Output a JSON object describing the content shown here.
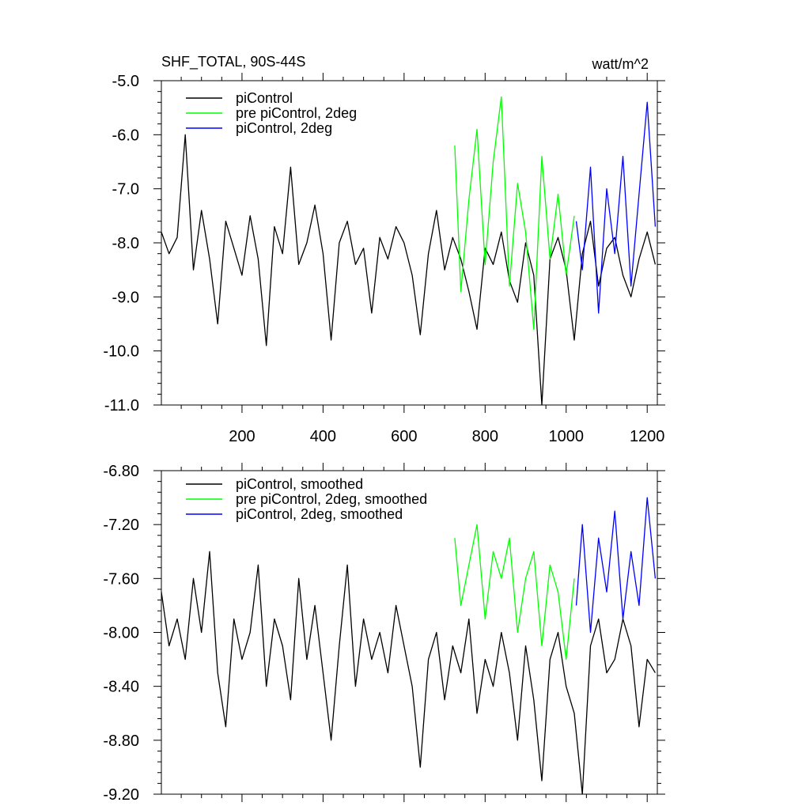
{
  "chart_data": [
    {
      "type": "line",
      "title": "SHF_TOTAL, 90S-44S",
      "units": "watt/m^2",
      "xlim": [
        1,
        1225
      ],
      "ylim": [
        -11.0,
        -5.0
      ],
      "xticks": [
        200,
        400,
        600,
        800,
        1000,
        1200
      ],
      "xtick_labels": [
        "200",
        "400",
        "600",
        "800",
        "1000",
        "1200"
      ],
      "yticks": [
        -5.0,
        -6.0,
        -7.0,
        -8.0,
        -9.0,
        -10.0,
        -11.0
      ],
      "ytick_labels": [
        "-5.0",
        "-6.0",
        "-7.0",
        "-8.0",
        "-9.0",
        "-10.0",
        "-11.0"
      ],
      "legend_position": "top-left",
      "series": [
        {
          "name": "piControl",
          "color": "#000000",
          "x": [
            1,
            20,
            40,
            60,
            80,
            100,
            120,
            140,
            160,
            180,
            200,
            220,
            240,
            260,
            280,
            300,
            320,
            340,
            360,
            380,
            400,
            420,
            440,
            460,
            480,
            500,
            520,
            540,
            560,
            580,
            600,
            620,
            640,
            660,
            680,
            700,
            720,
            740,
            760,
            780,
            800,
            820,
            840,
            860,
            880,
            900,
            920,
            940,
            960,
            980,
            1000,
            1020,
            1040,
            1060,
            1080,
            1100,
            1120,
            1140,
            1160,
            1180,
            1200,
            1220
          ],
          "y": [
            -7.8,
            -8.2,
            -7.9,
            -6.0,
            -8.5,
            -7.4,
            -8.3,
            -9.5,
            -7.6,
            -8.1,
            -8.6,
            -7.5,
            -8.3,
            -9.9,
            -7.7,
            -8.2,
            -6.6,
            -8.4,
            -8.0,
            -7.3,
            -8.2,
            -9.8,
            -8.0,
            -7.6,
            -8.4,
            -8.1,
            -9.3,
            -7.9,
            -8.3,
            -7.7,
            -8.0,
            -8.6,
            -9.7,
            -8.2,
            -7.4,
            -8.5,
            -7.9,
            -8.3,
            -8.9,
            -9.6,
            -8.1,
            -8.4,
            -7.8,
            -8.7,
            -9.1,
            -8.0,
            -8.6,
            -11.0,
            -8.3,
            -7.9,
            -8.5,
            -9.8,
            -8.2,
            -7.6,
            -8.8,
            -8.1,
            -7.9,
            -8.6,
            -9.0,
            -8.3,
            -7.8,
            -8.4
          ]
        },
        {
          "name": "pre piControl, 2deg",
          "color": "#00ff00",
          "x": [
            725,
            740,
            760,
            780,
            800,
            820,
            840,
            860,
            880,
            900,
            920,
            940,
            960,
            980,
            1000,
            1020
          ],
          "y": [
            -6.2,
            -8.9,
            -7.2,
            -5.9,
            -8.4,
            -6.5,
            -5.3,
            -8.8,
            -6.9,
            -7.8,
            -9.6,
            -6.4,
            -8.3,
            -7.1,
            -8.6,
            -7.5
          ]
        },
        {
          "name": "piControl, 2deg",
          "color": "#0000ff",
          "x": [
            1025,
            1040,
            1060,
            1080,
            1100,
            1120,
            1140,
            1160,
            1180,
            1200,
            1220
          ],
          "y": [
            -7.6,
            -8.5,
            -6.6,
            -9.3,
            -7.0,
            -8.2,
            -6.4,
            -8.8,
            -7.1,
            -5.4,
            -7.7
          ]
        }
      ]
    },
    {
      "type": "line",
      "xlim": [
        1,
        1225
      ],
      "ylim": [
        -9.2,
        -6.8
      ],
      "xticks": [
        200,
        400,
        600,
        800,
        1000,
        1200
      ],
      "yticks": [
        -6.8,
        -7.2,
        -7.6,
        -8.0,
        -8.4,
        -8.8,
        -9.2
      ],
      "ytick_labels": [
        "-6.80",
        "-7.20",
        "-7.60",
        "-8.00",
        "-8.40",
        "-8.80",
        "-9.20"
      ],
      "legend_position": "top-left",
      "series": [
        {
          "name": "piControl, smoothed",
          "color": "#000000",
          "x": [
            1,
            20,
            40,
            60,
            80,
            100,
            120,
            140,
            160,
            180,
            200,
            220,
            240,
            260,
            280,
            300,
            320,
            340,
            360,
            380,
            400,
            420,
            440,
            460,
            480,
            500,
            520,
            540,
            560,
            580,
            600,
            620,
            640,
            660,
            680,
            700,
            720,
            740,
            760,
            780,
            800,
            820,
            840,
            860,
            880,
            900,
            920,
            940,
            960,
            980,
            1000,
            1020,
            1040,
            1060,
            1080,
            1100,
            1120,
            1140,
            1160,
            1180,
            1200,
            1220
          ],
          "y": [
            -7.7,
            -8.1,
            -7.9,
            -8.2,
            -7.6,
            -8.0,
            -7.4,
            -8.3,
            -8.7,
            -7.9,
            -8.2,
            -8.0,
            -7.5,
            -8.4,
            -7.9,
            -8.1,
            -8.5,
            -7.6,
            -8.2,
            -7.8,
            -8.3,
            -8.8,
            -8.1,
            -7.5,
            -8.4,
            -7.9,
            -8.2,
            -8.0,
            -8.3,
            -7.8,
            -8.1,
            -8.4,
            -9.0,
            -8.2,
            -8.0,
            -8.5,
            -8.1,
            -8.3,
            -7.9,
            -8.6,
            -8.2,
            -8.4,
            -8.0,
            -8.3,
            -8.8,
            -8.1,
            -8.5,
            -9.1,
            -8.2,
            -8.0,
            -8.4,
            -8.6,
            -9.2,
            -8.1,
            -7.9,
            -8.3,
            -8.2,
            -7.9,
            -8.1,
            -8.7,
            -8.2,
            -8.3
          ]
        },
        {
          "name": "pre piControl, 2deg, smoothed",
          "color": "#00ff00",
          "x": [
            725,
            740,
            760,
            780,
            800,
            820,
            840,
            860,
            880,
            900,
            920,
            940,
            960,
            980,
            1000,
            1020
          ],
          "y": [
            -7.3,
            -7.8,
            -7.5,
            -7.2,
            -7.9,
            -7.4,
            -7.6,
            -7.3,
            -8.0,
            -7.6,
            -7.4,
            -8.1,
            -7.5,
            -7.7,
            -8.2,
            -7.6
          ]
        },
        {
          "name": "piControl, 2deg, smoothed",
          "color": "#0000ff",
          "x": [
            1025,
            1040,
            1060,
            1080,
            1100,
            1120,
            1140,
            1160,
            1180,
            1200,
            1220
          ],
          "y": [
            -7.8,
            -7.2,
            -8.0,
            -7.3,
            -7.7,
            -7.1,
            -7.9,
            -7.4,
            -7.8,
            -7.0,
            -7.6
          ]
        }
      ]
    }
  ]
}
